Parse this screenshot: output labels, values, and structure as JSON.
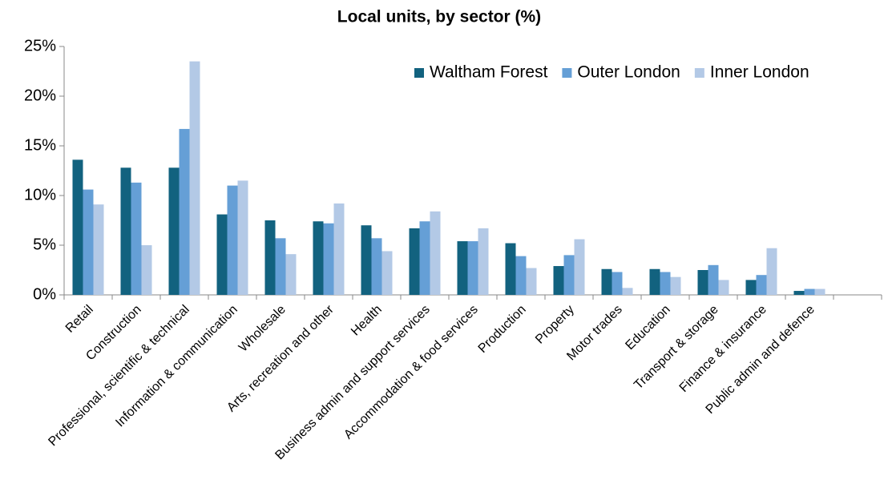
{
  "chart_data": {
    "type": "bar",
    "title": "Local units, by sector (%)",
    "categories": [
      "Retail",
      "Construction",
      "Professional, scientific & technical",
      "Information & communication",
      "Wholesale",
      "Arts, recreation and other",
      "Health",
      "Business admin and support services",
      "Accommodation & food services",
      "Production",
      "Property",
      "Motor trades",
      "Education",
      "Transport & storage",
      "Finance & insurance",
      "Public admin and defence",
      null
    ],
    "series": [
      {
        "name": "Waltham Forest",
        "color": "#12627f",
        "values": [
          13.6,
          12.8,
          12.8,
          8.1,
          7.5,
          7.4,
          7.0,
          6.7,
          5.4,
          5.2,
          2.9,
          2.6,
          2.6,
          2.5,
          1.5,
          0.4,
          null
        ]
      },
      {
        "name": "Outer London",
        "color": "#659fd6",
        "values": [
          10.6,
          11.3,
          16.7,
          11.0,
          5.7,
          7.2,
          5.7,
          7.4,
          5.4,
          3.9,
          4.0,
          2.3,
          2.3,
          3.0,
          2.0,
          0.6,
          null
        ]
      },
      {
        "name": "Inner London",
        "color": "#b3c9e6",
        "values": [
          9.1,
          5.0,
          23.5,
          11.5,
          4.1,
          9.2,
          4.4,
          8.4,
          6.7,
          2.7,
          5.6,
          0.7,
          1.8,
          1.5,
          4.7,
          0.6,
          null
        ]
      }
    ],
    "ylim": [
      0,
      25
    ],
    "yticks": [
      {
        "value": 0,
        "label": "0%"
      },
      {
        "value": 5,
        "label": "5%"
      },
      {
        "value": 10,
        "label": "10%"
      },
      {
        "value": 15,
        "label": "15%"
      },
      {
        "value": 20,
        "label": "20%"
      },
      {
        "value": 25,
        "label": "25%"
      }
    ],
    "grid": false,
    "legend": "top-right"
  }
}
